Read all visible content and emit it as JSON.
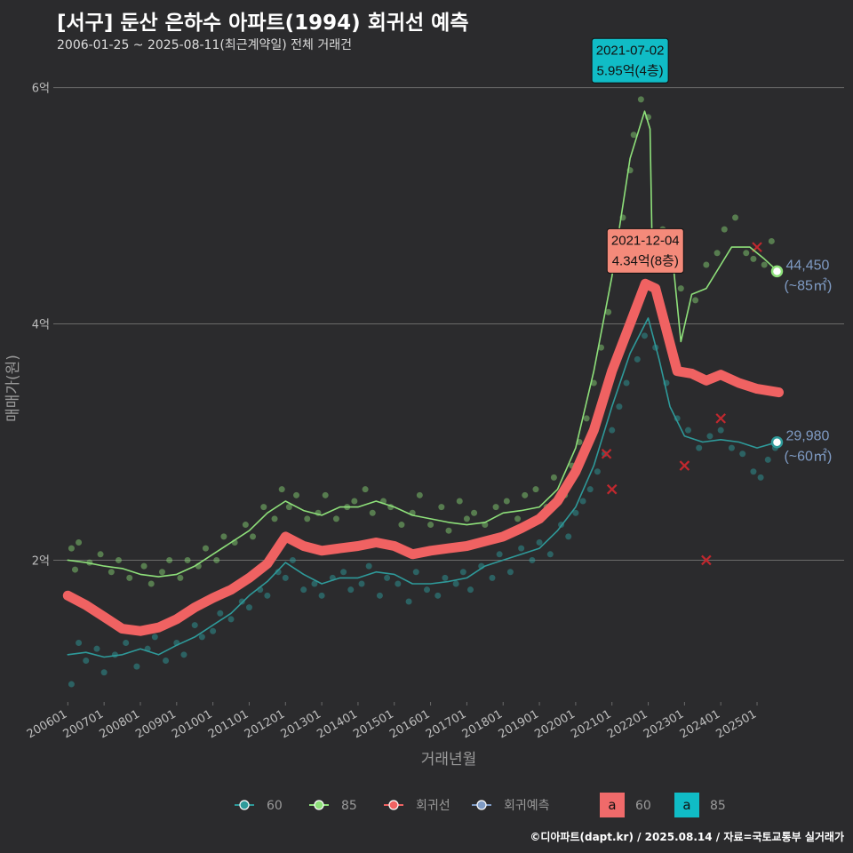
{
  "header": {
    "title": "[서구] 둔산 은하수 아파트(1994) 회귀선 예측",
    "subtitle": "2006-01-25 ~ 2025-08-11(최근계약일) 전체 거래건"
  },
  "footer": {
    "credit": "©디아파트(dapt.kr) / 2025.08.14 / 자료=국토교통부 실거래가"
  },
  "colors": {
    "background": "#2b2b2d",
    "grid": "#6a6a6a",
    "s60": "#2e9a9a",
    "s85": "#8ee07a",
    "regression": "#f06262",
    "forecast": "#7f9bc4",
    "callout_top_bg": "#10bcc6",
    "callout_reg_bg": "#f48a7a",
    "legend_a60": "#f06a6a",
    "legend_a85": "#10bcc6"
  },
  "chart_data": {
    "type": "line",
    "xlabel": "거래년월",
    "ylabel": "매매가(원)",
    "x_ticks": [
      "200601",
      "200701",
      "200801",
      "200901",
      "201001",
      "201101",
      "201201",
      "201301",
      "201401",
      "201501",
      "201601",
      "201701",
      "201801",
      "201901",
      "202001",
      "202101",
      "202201",
      "202301",
      "202401",
      "202501"
    ],
    "y_ticks": [
      {
        "value": 2,
        "label": "2억"
      },
      {
        "value": 4,
        "label": "4억"
      },
      {
        "value": 6,
        "label": "6억"
      }
    ],
    "ylim": [
      0.8,
      6.2
    ],
    "xlim": [
      2005.6,
      2027.4
    ],
    "series": [
      {
        "key": "85",
        "name": "85",
        "style": "line",
        "points": [
          [
            2006.0,
            2.0
          ],
          [
            2006.5,
            1.98
          ],
          [
            2007.0,
            1.95
          ],
          [
            2007.5,
            1.93
          ],
          [
            2008.0,
            1.88
          ],
          [
            2008.5,
            1.86
          ],
          [
            2009.0,
            1.88
          ],
          [
            2009.5,
            1.95
          ],
          [
            2010.0,
            2.05
          ],
          [
            2010.5,
            2.15
          ],
          [
            2011.0,
            2.25
          ],
          [
            2011.5,
            2.4
          ],
          [
            2012.0,
            2.5
          ],
          [
            2012.5,
            2.42
          ],
          [
            2013.0,
            2.38
          ],
          [
            2013.5,
            2.45
          ],
          [
            2014.0,
            2.45
          ],
          [
            2014.5,
            2.5
          ],
          [
            2015.0,
            2.45
          ],
          [
            2015.5,
            2.38
          ],
          [
            2016.0,
            2.35
          ],
          [
            2016.5,
            2.32
          ],
          [
            2017.0,
            2.3
          ],
          [
            2017.5,
            2.32
          ],
          [
            2018.0,
            2.4
          ],
          [
            2018.5,
            2.42
          ],
          [
            2019.0,
            2.45
          ],
          [
            2019.5,
            2.6
          ],
          [
            2020.0,
            2.95
          ],
          [
            2020.5,
            3.6
          ],
          [
            2021.0,
            4.4
          ],
          [
            2021.5,
            5.4
          ],
          [
            2021.9,
            5.8
          ],
          [
            2022.05,
            5.65
          ],
          [
            2022.1,
            4.8
          ],
          [
            2022.6,
            4.78
          ],
          [
            2022.9,
            3.85
          ],
          [
            2023.2,
            4.25
          ],
          [
            2023.6,
            4.3
          ],
          [
            2024.0,
            4.5
          ],
          [
            2024.3,
            4.65
          ],
          [
            2024.8,
            4.65
          ],
          [
            2025.2,
            4.55
          ],
          [
            2025.55,
            4.45
          ]
        ]
      },
      {
        "key": "60",
        "name": "60",
        "style": "line",
        "points": [
          [
            2006.0,
            1.2
          ],
          [
            2006.5,
            1.22
          ],
          [
            2007.0,
            1.18
          ],
          [
            2007.5,
            1.2
          ],
          [
            2008.0,
            1.25
          ],
          [
            2008.5,
            1.2
          ],
          [
            2009.0,
            1.28
          ],
          [
            2009.5,
            1.35
          ],
          [
            2010.0,
            1.45
          ],
          [
            2010.5,
            1.55
          ],
          [
            2011.0,
            1.7
          ],
          [
            2011.5,
            1.82
          ],
          [
            2012.0,
            1.98
          ],
          [
            2012.5,
            1.88
          ],
          [
            2013.0,
            1.8
          ],
          [
            2013.5,
            1.85
          ],
          [
            2014.0,
            1.85
          ],
          [
            2014.5,
            1.9
          ],
          [
            2015.0,
            1.88
          ],
          [
            2015.5,
            1.8
          ],
          [
            2016.0,
            1.8
          ],
          [
            2016.5,
            1.82
          ],
          [
            2017.0,
            1.85
          ],
          [
            2017.5,
            1.95
          ],
          [
            2018.0,
            2.0
          ],
          [
            2018.5,
            2.05
          ],
          [
            2019.0,
            2.1
          ],
          [
            2019.5,
            2.25
          ],
          [
            2020.0,
            2.45
          ],
          [
            2020.5,
            2.8
          ],
          [
            2021.0,
            3.3
          ],
          [
            2021.5,
            3.75
          ],
          [
            2022.0,
            4.05
          ],
          [
            2022.3,
            3.7
          ],
          [
            2022.6,
            3.3
          ],
          [
            2023.0,
            3.05
          ],
          [
            2023.5,
            3.0
          ],
          [
            2024.0,
            3.02
          ],
          [
            2024.5,
            3.0
          ],
          [
            2025.0,
            2.95
          ],
          [
            2025.55,
            2.998
          ]
        ]
      },
      {
        "key": "regression",
        "name": "회귀선",
        "style": "thick",
        "points": [
          [
            2006.0,
            1.7
          ],
          [
            2006.5,
            1.62
          ],
          [
            2007.0,
            1.52
          ],
          [
            2007.5,
            1.42
          ],
          [
            2008.0,
            1.4
          ],
          [
            2008.5,
            1.43
          ],
          [
            2009.0,
            1.5
          ],
          [
            2009.5,
            1.6
          ],
          [
            2010.0,
            1.68
          ],
          [
            2010.5,
            1.75
          ],
          [
            2011.0,
            1.85
          ],
          [
            2011.5,
            1.97
          ],
          [
            2012.0,
            2.2
          ],
          [
            2012.5,
            2.12
          ],
          [
            2013.0,
            2.08
          ],
          [
            2013.5,
            2.1
          ],
          [
            2014.0,
            2.12
          ],
          [
            2014.5,
            2.15
          ],
          [
            2015.0,
            2.12
          ],
          [
            2015.5,
            2.05
          ],
          [
            2016.0,
            2.08
          ],
          [
            2016.5,
            2.1
          ],
          [
            2017.0,
            2.12
          ],
          [
            2017.5,
            2.16
          ],
          [
            2018.0,
            2.2
          ],
          [
            2018.5,
            2.27
          ],
          [
            2019.0,
            2.35
          ],
          [
            2019.5,
            2.5
          ],
          [
            2020.0,
            2.75
          ],
          [
            2020.5,
            3.1
          ],
          [
            2021.0,
            3.6
          ],
          [
            2021.5,
            4.0
          ],
          [
            2021.92,
            4.34
          ],
          [
            2022.2,
            4.3
          ],
          [
            2022.5,
            3.95
          ],
          [
            2022.8,
            3.6
          ],
          [
            2023.2,
            3.58
          ],
          [
            2023.6,
            3.52
          ],
          [
            2024.0,
            3.57
          ],
          [
            2024.5,
            3.5
          ],
          [
            2025.0,
            3.45
          ],
          [
            2025.6,
            3.42
          ]
        ]
      }
    ],
    "scatter": {
      "s85_x": [
        2006.1,
        2006.2,
        2006.3,
        2006.6,
        2006.9,
        2007.2,
        2007.4,
        2007.7,
        2008.1,
        2008.3,
        2008.6,
        2008.8,
        2009.1,
        2009.3,
        2009.6,
        2009.8,
        2010.1,
        2010.3,
        2010.6,
        2010.9,
        2011.1,
        2011.4,
        2011.7,
        2011.9,
        2012.1,
        2012.3,
        2012.6,
        2012.9,
        2013.1,
        2013.4,
        2013.7,
        2013.9,
        2014.2,
        2014.4,
        2014.7,
        2014.9,
        2015.2,
        2015.5,
        2015.7,
        2016.0,
        2016.3,
        2016.5,
        2016.8,
        2017.0,
        2017.2,
        2017.5,
        2017.8,
        2018.1,
        2018.4,
        2018.6,
        2018.9,
        2019.2,
        2019.4,
        2019.7,
        2019.9,
        2020.1,
        2020.3,
        2020.5,
        2020.7,
        2020.9,
        2021.1,
        2021.3,
        2021.5,
        2021.6,
        2021.8,
        2022.0,
        2022.4,
        2022.9,
        2023.3,
        2023.6,
        2023.9,
        2024.1,
        2024.4,
        2024.7,
        2024.9,
        2025.2,
        2025.4
      ],
      "s85_y": [
        2.1,
        1.92,
        2.15,
        1.98,
        2.05,
        1.9,
        2.0,
        1.85,
        1.95,
        1.8,
        1.9,
        2.0,
        1.85,
        2.0,
        1.95,
        2.1,
        2.0,
        2.2,
        2.15,
        2.3,
        2.2,
        2.45,
        2.35,
        2.6,
        2.45,
        2.55,
        2.35,
        2.4,
        2.55,
        2.35,
        2.45,
        2.5,
        2.6,
        2.4,
        2.5,
        2.45,
        2.3,
        2.4,
        2.55,
        2.3,
        2.45,
        2.25,
        2.5,
        2.35,
        2.4,
        2.3,
        2.45,
        2.5,
        2.35,
        2.55,
        2.6,
        2.45,
        2.7,
        2.55,
        2.8,
        3.0,
        3.2,
        3.5,
        3.8,
        4.1,
        4.5,
        4.9,
        5.3,
        5.6,
        5.9,
        5.75,
        4.8,
        4.3,
        4.2,
        4.5,
        4.6,
        4.8,
        4.9,
        4.6,
        4.55,
        4.5,
        4.7
      ],
      "s60_x": [
        2006.1,
        2006.3,
        2006.5,
        2006.8,
        2007.0,
        2007.3,
        2007.6,
        2007.9,
        2008.2,
        2008.4,
        2008.7,
        2009.0,
        2009.2,
        2009.5,
        2009.7,
        2010.0,
        2010.2,
        2010.5,
        2010.8,
        2011.0,
        2011.3,
        2011.5,
        2011.8,
        2012.0,
        2012.2,
        2012.5,
        2012.8,
        2013.0,
        2013.3,
        2013.6,
        2013.8,
        2014.1,
        2014.3,
        2014.6,
        2014.8,
        2015.1,
        2015.4,
        2015.6,
        2015.9,
        2016.2,
        2016.4,
        2016.7,
        2016.9,
        2017.1,
        2017.4,
        2017.7,
        2017.9,
        2018.2,
        2018.5,
        2018.8,
        2019.0,
        2019.3,
        2019.6,
        2019.8,
        2020.0,
        2020.2,
        2020.4,
        2020.6,
        2020.8,
        2021.0,
        2021.2,
        2021.4,
        2021.7,
        2021.9,
        2022.2,
        2022.5,
        2022.8,
        2023.1,
        2023.4,
        2023.7,
        2024.0,
        2024.3,
        2024.6,
        2024.9,
        2025.1,
        2025.3,
        2025.5
      ],
      "s60_y": [
        0.95,
        1.3,
        1.15,
        1.25,
        1.05,
        1.2,
        1.3,
        1.1,
        1.25,
        1.35,
        1.15,
        1.3,
        1.2,
        1.45,
        1.35,
        1.4,
        1.55,
        1.5,
        1.65,
        1.6,
        1.75,
        1.7,
        1.9,
        1.85,
        2.0,
        1.75,
        1.8,
        1.7,
        1.85,
        1.9,
        1.75,
        1.8,
        1.95,
        1.7,
        1.85,
        1.8,
        1.65,
        1.9,
        1.75,
        1.7,
        1.85,
        1.8,
        1.9,
        1.75,
        1.95,
        1.85,
        2.05,
        1.9,
        2.1,
        2.0,
        2.15,
        2.05,
        2.3,
        2.2,
        2.4,
        2.5,
        2.6,
        2.75,
        2.9,
        3.1,
        3.3,
        3.5,
        3.7,
        3.9,
        3.8,
        3.5,
        3.2,
        3.1,
        2.95,
        3.05,
        3.1,
        2.95,
        2.9,
        2.75,
        2.7,
        2.85,
        2.95
      ],
      "crosses_x": [
        2020.85,
        2021.0,
        2023.0,
        2023.6,
        2024.0,
        2025.0
      ],
      "crosses_y": [
        2.9,
        2.6,
        2.8,
        2.0,
        3.2,
        4.65
      ]
    },
    "callouts": [
      {
        "key": "top",
        "date": "2021-07-02",
        "value": "5.95억(4층)",
        "x": 2021.5,
        "y": 5.95,
        "box_y": 6.04
      },
      {
        "key": "reg",
        "date": "2021-12-04",
        "value": "4.34억(8층)",
        "x": 2021.92,
        "y": 4.34,
        "box_y": 4.43
      }
    ],
    "end_labels": [
      {
        "key": "s85",
        "value": "44,450",
        "area": "(~85㎡)",
        "x": 2025.55,
        "y": 4.445
      },
      {
        "key": "s60",
        "value": "29,980",
        "area": "(~60㎡)",
        "x": 2025.55,
        "y": 2.998
      }
    ],
    "legend": {
      "position": "bottom",
      "items": [
        {
          "label": "60",
          "color": "#2e9a9a"
        },
        {
          "label": "85",
          "color": "#8ee07a"
        },
        {
          "label": "회귀선",
          "color": "#f06262"
        },
        {
          "label": "회귀예측",
          "color": "#7f9bc4"
        }
      ],
      "boxes": [
        {
          "glyph": "a",
          "label": "60",
          "color": "#f06a6a"
        },
        {
          "glyph": "a",
          "label": "85",
          "color": "#10bcc6"
        }
      ]
    }
  }
}
